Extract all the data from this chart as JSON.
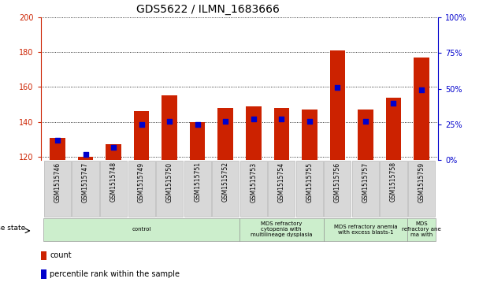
{
  "title": "GDS5622 / ILMN_1683666",
  "samples": [
    "GSM1515746",
    "GSM1515747",
    "GSM1515748",
    "GSM1515749",
    "GSM1515750",
    "GSM1515751",
    "GSM1515752",
    "GSM1515753",
    "GSM1515754",
    "GSM1515755",
    "GSM1515756",
    "GSM1515757",
    "GSM1515758",
    "GSM1515759"
  ],
  "counts": [
    131,
    120,
    127,
    146,
    155,
    140,
    148,
    149,
    148,
    147,
    181,
    147,
    154,
    177
  ],
  "percentile_ranks": [
    14,
    4,
    9,
    25,
    27,
    25,
    27,
    29,
    29,
    27,
    51,
    27,
    40,
    49
  ],
  "ylim_left": [
    118,
    200
  ],
  "ylim_right": [
    0,
    100
  ],
  "yticks_left": [
    120,
    140,
    160,
    180,
    200
  ],
  "yticks_right": [
    0,
    25,
    50,
    75,
    100
  ],
  "bar_color": "#cc2200",
  "dot_color": "#0000cc",
  "plot_bg": "#ffffff",
  "sample_bg": "#d8d8d8",
  "sample_border": "#aaaaaa",
  "disease_bg": "#cceecc",
  "disease_border": "#888888",
  "disease_groups": [
    {
      "label": "control",
      "start": 0,
      "end": 7
    },
    {
      "label": "MDS refractory\ncytopenia with\nmultilineage dysplasia",
      "start": 7,
      "end": 10
    },
    {
      "label": "MDS refractory anemia\nwith excess blasts-1",
      "start": 10,
      "end": 13
    },
    {
      "label": "MDS\nrefractory ane\nma with",
      "start": 13,
      "end": 14
    }
  ],
  "legend_items": [
    {
      "label": "count",
      "color": "#cc2200"
    },
    {
      "label": "percentile rank within the sample",
      "color": "#0000cc"
    }
  ],
  "title_fontsize": 10,
  "tick_fontsize": 7,
  "sample_fontsize": 5.5,
  "disease_fontsize": 5,
  "legend_fontsize": 7,
  "bar_width": 0.55
}
